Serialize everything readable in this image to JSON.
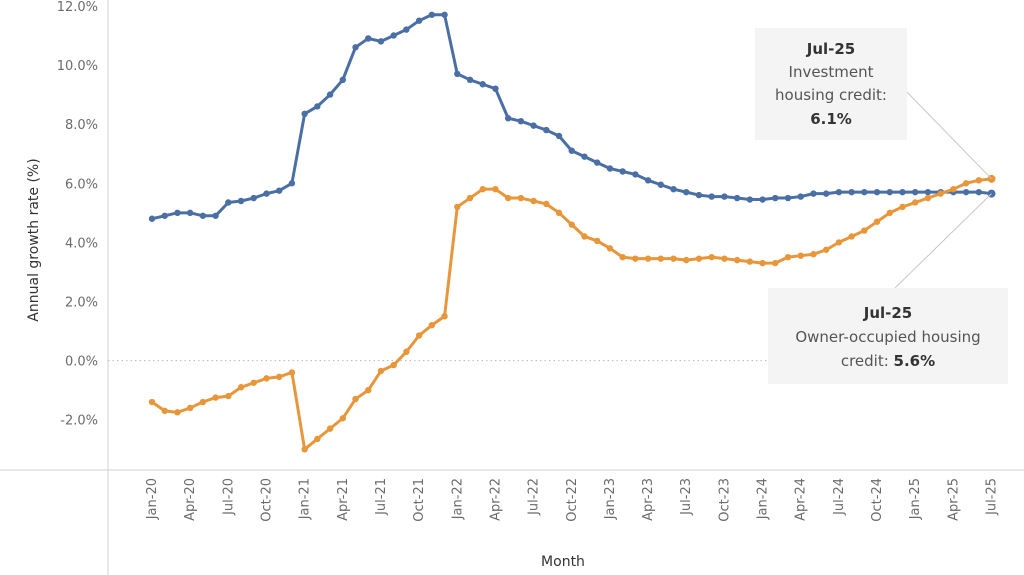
{
  "chart_data": {
    "type": "line",
    "xlabel": "Month",
    "ylabel": "Annual growth rate (%)",
    "ylim": [
      -3.7,
      12.2
    ],
    "yticks": [
      -2,
      0,
      2,
      4,
      6,
      8,
      10,
      12
    ],
    "ytick_labels": [
      "-2.0%",
      "0.0%",
      "2.0%",
      "4.0%",
      "6.0%",
      "8.0%",
      "10.0%",
      "12.0%"
    ],
    "xtick_labels": [
      "Jan-20",
      "Apr-20",
      "Jul-20",
      "Oct-20",
      "Jan-21",
      "Apr-21",
      "Jul-21",
      "Oct-21",
      "Jan-22",
      "Apr-22",
      "Jul-22",
      "Oct-22",
      "Jan-23",
      "Apr-23",
      "Jul-23",
      "Oct-23",
      "Jan-24",
      "Apr-24",
      "Jul-24",
      "Oct-24",
      "Jan-25",
      "Apr-25",
      "Jul-25"
    ],
    "x_start": "Jan-20",
    "x_end": "Jul-25",
    "zero_line": "dotted",
    "grid": false,
    "series": [
      {
        "color": "#4a6fa5",
        "values": [
          4.8,
          4.9,
          5.0,
          5.0,
          4.9,
          4.9,
          5.35,
          5.4,
          5.5,
          5.65,
          5.75,
          6.0,
          8.35,
          8.6,
          9.0,
          9.5,
          10.6,
          10.9,
          10.8,
          11.0,
          11.2,
          11.5,
          11.7,
          11.7,
          9.7,
          9.5,
          9.35,
          9.2,
          8.2,
          8.1,
          7.95,
          7.8,
          7.6,
          7.1,
          6.9,
          6.7,
          6.5,
          6.4,
          6.3,
          6.1,
          5.95,
          5.8,
          5.7,
          5.6,
          5.55,
          5.55,
          5.5,
          5.45,
          5.45,
          5.5,
          5.5,
          5.55,
          5.65,
          5.65,
          5.7,
          5.7,
          5.7,
          5.7,
          5.7,
          5.7,
          5.7,
          5.7,
          5.7,
          5.7,
          5.7,
          5.7,
          5.65
        ]
      },
      {
        "color": "#e8963a",
        "values": [
          -1.4,
          -1.7,
          -1.75,
          -1.6,
          -1.4,
          -1.25,
          -1.2,
          -0.9,
          -0.75,
          -0.6,
          -0.55,
          -0.4,
          -3.0,
          -2.65,
          -2.3,
          -1.95,
          -1.3,
          -1.0,
          -0.35,
          -0.15,
          0.3,
          0.85,
          1.2,
          1.5,
          5.2,
          5.5,
          5.8,
          5.8,
          5.5,
          5.5,
          5.4,
          5.3,
          5.0,
          4.6,
          4.2,
          4.05,
          3.8,
          3.5,
          3.45,
          3.45,
          3.45,
          3.45,
          3.4,
          3.45,
          3.5,
          3.45,
          3.4,
          3.35,
          3.3,
          3.3,
          3.5,
          3.55,
          3.6,
          3.75,
          4.0,
          4.2,
          4.4,
          4.7,
          5.0,
          5.2,
          5.35,
          5.5,
          5.65,
          5.8,
          6.0,
          6.1,
          6.15
        ]
      }
    ],
    "annotations": {
      "investment": {
        "date": "Jul-25",
        "text_line1": "Investment",
        "text_line2": "housing credit:",
        "value": "6.1%"
      },
      "owner": {
        "date": "Jul-25",
        "text_line1": "Owner-occupied housing",
        "text_line2": "credit: ",
        "value": "5.6%"
      }
    }
  }
}
